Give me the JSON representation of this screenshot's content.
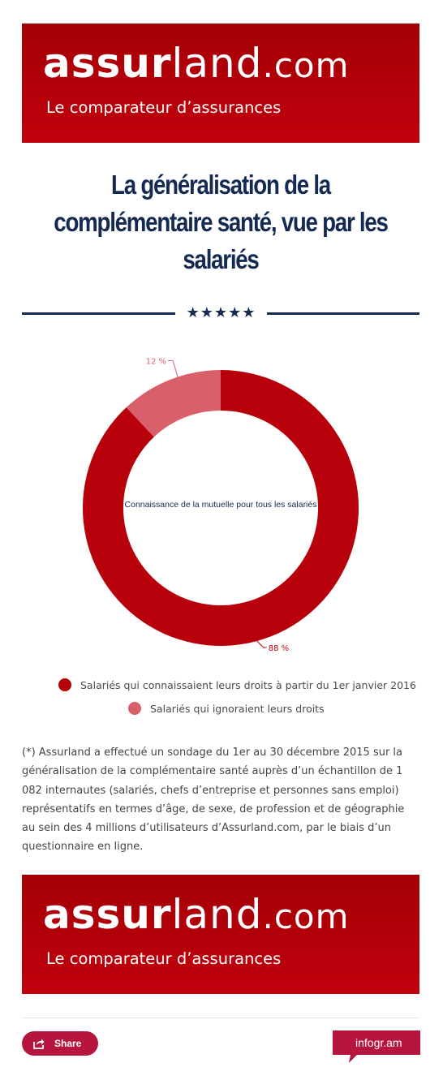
{
  "header_banner": {
    "brand_bold": "assur",
    "brand_light": "land",
    "brand_domain": ".com",
    "tagline": "Le comparateur d’assurances",
    "color": "#b8000b"
  },
  "title_lines": [
    "La généralisation de la",
    "complémentaire santé, vue par les",
    "salariés"
  ],
  "stars": "★★★★★",
  "chart_data": {
    "type": "pie",
    "donut": true,
    "center_label": "Connaissance de la mutuelle pour tous les salariés",
    "series": [
      {
        "name": "Salariés qui connaissaient leurs droits à partir du 1er janvier 2016",
        "value": 88,
        "label": "88 %",
        "color": "#b8000b"
      },
      {
        "name": "Salariés qui ignoraient leurs droits",
        "value": 12,
        "label": "12 %",
        "color": "#d9606b"
      }
    ],
    "legend_position": "bottom"
  },
  "footnote": "(*) Assurland a effectué un sondage du 1er au 30 décembre 2015 sur la généralisation de la complémentaire santé  auprès d’un échantillon de 1 082 internautes (salariés, chefs d’entreprise et personnes sans emploi) représentatifs en termes d’âge, de sexe, de profession et de géographie au sein des 4 millions d’utilisateurs d’Assurland.com, par le biais d’un questionnaire en ligne.",
  "footer_banner": {
    "brand_bold": "assur",
    "brand_light": "land",
    "brand_domain": ".com",
    "tagline": "Le comparateur d’assurances"
  },
  "share_button": {
    "label": "Share",
    "icon": "share-icon",
    "color": "#b6153d"
  },
  "infogram_badge": {
    "label": "infogr.am",
    "color": "#b6153d"
  }
}
